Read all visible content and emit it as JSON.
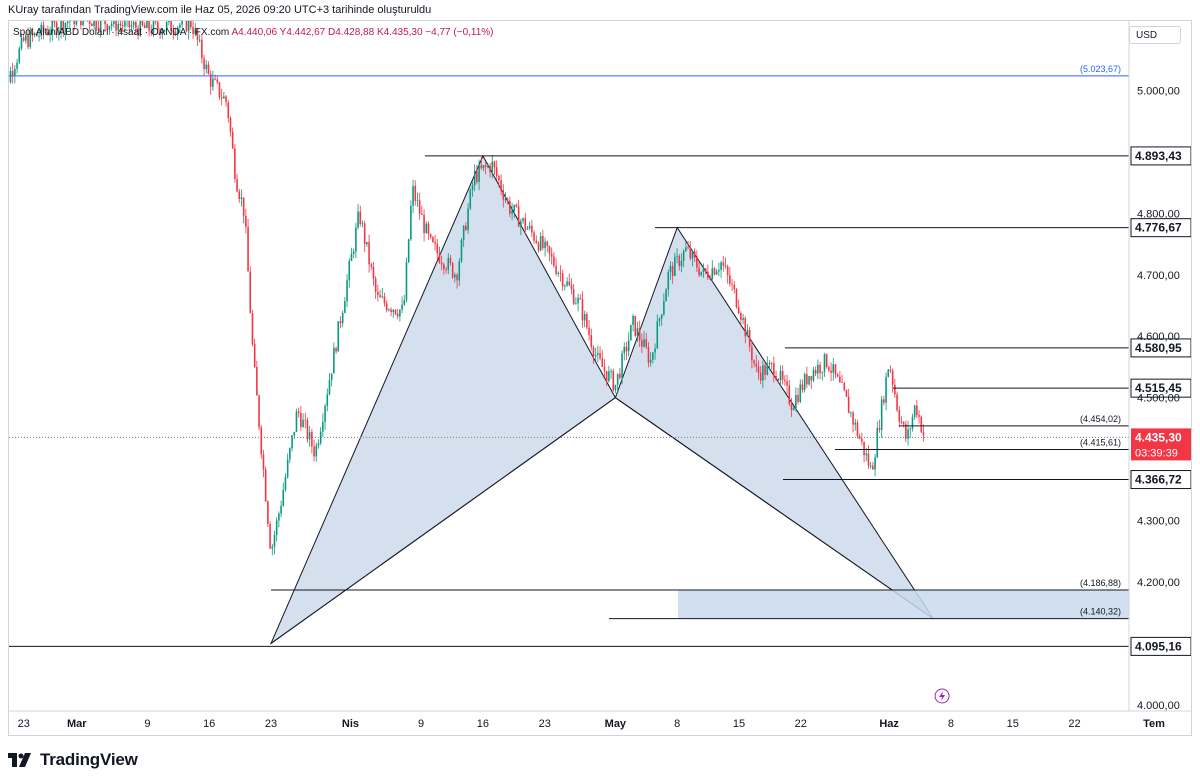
{
  "credit": "KUray tarafından TradingView.com ile Haz 05, 2026 09:20 UTC+3 tarihinde oluşturuldu",
  "legend": {
    "symbol": "Spot Altın/ABD Doları",
    "interval": "4saat",
    "exchange": "OANDA · FX.com",
    "ohlc": "A4.440,06  Y4.442,67  D4.428,88  K4.435,30  −4,77 (−0,11%)"
  },
  "currency": "USD",
  "brand": "TradingView",
  "colors": {
    "up": "#089981",
    "down": "#f23645",
    "pattern_fill": "#c7d6ea",
    "zone_fill": "#c9d9ee",
    "line": "#131722",
    "blue_line": "#2962ff",
    "last_price": "#f23645"
  },
  "chart_data": {
    "type": "candlestick",
    "y_range": [
      3990,
      5100
    ],
    "x_ticks": [
      "23",
      "Mar",
      "9",
      "16",
      "23",
      "Nis",
      "9",
      "16",
      "23",
      "May",
      "8",
      "15",
      "22",
      "Haz",
      "8",
      "15",
      "22",
      "Tem"
    ],
    "y_ticks": [
      "5.000,00",
      "4.800,00",
      "4.700,00",
      "4.600,00",
      "4.500,00",
      "4.300,00",
      "4.200,00",
      "4.000,00"
    ],
    "y_tick_values": [
      5000,
      4800,
      4700,
      4600,
      4500,
      4300,
      4200,
      4000
    ],
    "last_price": {
      "value": 4435.3,
      "label": "4.435,30",
      "countdown": "03:39:39"
    },
    "horizontal_lines": [
      {
        "label": "(5.023,67)",
        "value": 5023.67,
        "style": "blue"
      },
      {
        "label": "4.893,43",
        "value": 4893.43,
        "style": "box"
      },
      {
        "label": "4.776,67",
        "value": 4776.67,
        "style": "box"
      },
      {
        "label": "4.580,95",
        "value": 4580.95,
        "style": "box"
      },
      {
        "label": "4.515,45",
        "value": 4515.45,
        "style": "box"
      },
      {
        "label": "(4.454,02)",
        "value": 4454.02,
        "style": "paren"
      },
      {
        "label": "(4.415,61)",
        "value": 4415.61,
        "style": "paren"
      },
      {
        "label": "4.366,72",
        "value": 4366.72,
        "style": "box"
      },
      {
        "label": "(4.186,88)",
        "value": 4186.88,
        "style": "paren"
      },
      {
        "label": "(4.140,32)",
        "value": 4140.32,
        "style": "paren"
      },
      {
        "label": "4.095,16",
        "value": 4095.16,
        "style": "box"
      }
    ],
    "pattern_points": [
      {
        "x": "Mar 23",
        "y": 4100
      },
      {
        "x": "Nis 16",
        "y": 4893.43
      },
      {
        "x": "May 1",
        "y": 4500
      },
      {
        "x": "May 8",
        "y": 4776.67
      },
      {
        "x": "Haz 6",
        "y": 4140.32
      }
    ],
    "target_zone": [
      4140.32,
      4186.88
    ],
    "price_path": [
      {
        "x": "Feb 20",
        "y": 4980
      },
      {
        "x": "Feb 23",
        "y": 5080
      },
      {
        "x": "Mar 1",
        "y": 5120
      },
      {
        "x": "Mar 9",
        "y": 5100
      },
      {
        "x": "Mar 14",
        "y": 5110
      },
      {
        "x": "Mar 16",
        "y": 5020
      },
      {
        "x": "Mar 18",
        "y": 4980
      },
      {
        "x": "Mar 19",
        "y": 4860
      },
      {
        "x": "Mar 20",
        "y": 4800
      },
      {
        "x": "Mar 21",
        "y": 4560
      },
      {
        "x": "Mar 23",
        "y": 4250
      },
      {
        "x": "Mar 24",
        "y": 4320
      },
      {
        "x": "Mar 26",
        "y": 4480
      },
      {
        "x": "Mar 28",
        "y": 4410
      },
      {
        "x": "Mar 30",
        "y": 4560
      },
      {
        "x": "Apr 1",
        "y": 4720
      },
      {
        "x": "Apr 2",
        "y": 4800
      },
      {
        "x": "Apr 4",
        "y": 4660
      },
      {
        "x": "Apr 7",
        "y": 4640
      },
      {
        "x": "Apr 8",
        "y": 4840
      },
      {
        "x": "Apr 10",
        "y": 4750
      },
      {
        "x": "Apr 13",
        "y": 4700
      },
      {
        "x": "Apr 15",
        "y": 4860
      },
      {
        "x": "Apr 17",
        "y": 4880
      },
      {
        "x": "Apr 19",
        "y": 4810
      },
      {
        "x": "Apr 22",
        "y": 4760
      },
      {
        "x": "Apr 24",
        "y": 4720
      },
      {
        "x": "Apr 27",
        "y": 4650
      },
      {
        "x": "Apr 29",
        "y": 4560
      },
      {
        "x": "May 1",
        "y": 4520
      },
      {
        "x": "May 3",
        "y": 4620
      },
      {
        "x": "May 5",
        "y": 4560
      },
      {
        "x": "May 7",
        "y": 4700
      },
      {
        "x": "May 9",
        "y": 4740
      },
      {
        "x": "May 11",
        "y": 4700
      },
      {
        "x": "May 13",
        "y": 4720
      },
      {
        "x": "May 15",
        "y": 4650
      },
      {
        "x": "May 17",
        "y": 4540
      },
      {
        "x": "May 19",
        "y": 4550
      },
      {
        "x": "May 21",
        "y": 4490
      },
      {
        "x": "May 23",
        "y": 4540
      },
      {
        "x": "May 25",
        "y": 4560
      },
      {
        "x": "May 27",
        "y": 4500
      },
      {
        "x": "May 29",
        "y": 4420
      },
      {
        "x": "May 30",
        "y": 4380
      },
      {
        "x": "Jun 1",
        "y": 4560
      },
      {
        "x": "Jun 2",
        "y": 4480
      },
      {
        "x": "Jun 3",
        "y": 4430
      },
      {
        "x": "Jun 4",
        "y": 4490
      },
      {
        "x": "Jun 5",
        "y": 4435
      }
    ]
  }
}
